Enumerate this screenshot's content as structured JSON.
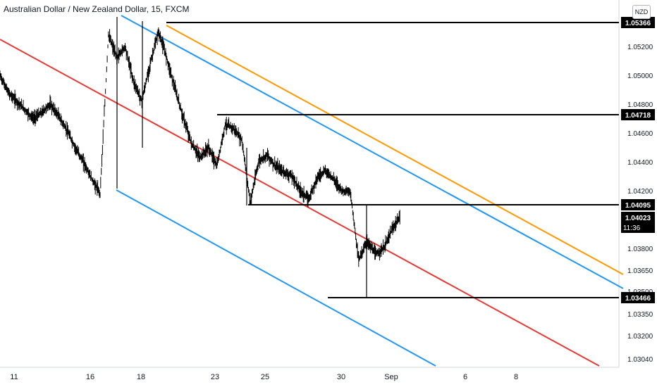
{
  "header": {
    "title": "Australian Dollar / New Zealand Dollar, 15, FXCM",
    "currency_button": "NZD"
  },
  "colors": {
    "candles": "#000000",
    "red_line": "#e53935",
    "blue_line": "#2196f3",
    "orange_line": "#ff9800",
    "level_line": "#000000",
    "price_label_bg": "#000000",
    "price_label_text": "#ffffff"
  },
  "chart_data": {
    "type": "line",
    "y_axis_ticks": [
      "1.05200",
      "1.05000",
      "1.04800",
      "1.04600",
      "1.04400",
      "1.04200",
      "1.03800",
      "1.03650",
      "1.03500",
      "1.03350",
      "1.03200",
      "1.03040"
    ],
    "x_axis_ticks": [
      "11",
      "16",
      "18",
      "23",
      "25",
      "30",
      "Sep",
      "6",
      "8"
    ],
    "horizontal_levels": [
      "1.05366",
      "1.04718",
      "1.04095",
      "1.03466"
    ],
    "current_price": {
      "value": "1.04023",
      "countdown": "11:36"
    },
    "price_path": [
      [
        "11",
        1.05
      ],
      [
        "11",
        1.0488
      ],
      [
        "11",
        1.0482
      ],
      [
        "11",
        1.0476
      ],
      [
        "11",
        1.047
      ],
      [
        "16",
        1.0474
      ],
      [
        "16",
        1.048
      ],
      [
        "16",
        1.0472
      ],
      [
        "16",
        1.0462
      ],
      [
        "16",
        1.045
      ],
      [
        "16",
        1.044
      ],
      [
        "16",
        1.0428
      ],
      [
        "16",
        1.0418
      ],
      [
        "18",
        1.0528
      ],
      [
        "18",
        1.0512
      ],
      [
        "18",
        1.052
      ],
      [
        "18",
        1.0496
      ],
      [
        "18",
        1.0482
      ],
      [
        "18",
        1.0508
      ],
      [
        "18",
        1.053
      ],
      [
        "18",
        1.0512
      ],
      [
        "23",
        1.049
      ],
      [
        "23",
        1.047
      ],
      [
        "23",
        1.0452
      ],
      [
        "23",
        1.0443
      ],
      [
        "23",
        1.045
      ],
      [
        "23",
        1.0437
      ],
      [
        "23",
        1.0466
      ],
      [
        "23",
        1.0463
      ],
      [
        "25",
        1.0455
      ],
      [
        "25",
        1.0412
      ],
      [
        "25",
        1.044
      ],
      [
        "25",
        1.0445
      ],
      [
        "25",
        1.0437
      ],
      [
        "25",
        1.0433
      ],
      [
        "25",
        1.043
      ],
      [
        "25",
        1.042
      ],
      [
        "30",
        1.0414
      ],
      [
        "30",
        1.0429
      ],
      [
        "30",
        1.0434
      ],
      [
        "30",
        1.0428
      ],
      [
        "30",
        1.042
      ],
      [
        "30",
        1.0419
      ],
      [
        "30",
        1.0372
      ],
      [
        "30",
        1.0385
      ],
      [
        "30",
        1.0376
      ],
      [
        "Sep",
        1.038
      ],
      [
        "Sep",
        1.0393
      ],
      [
        "Sep",
        1.0402
      ]
    ]
  }
}
